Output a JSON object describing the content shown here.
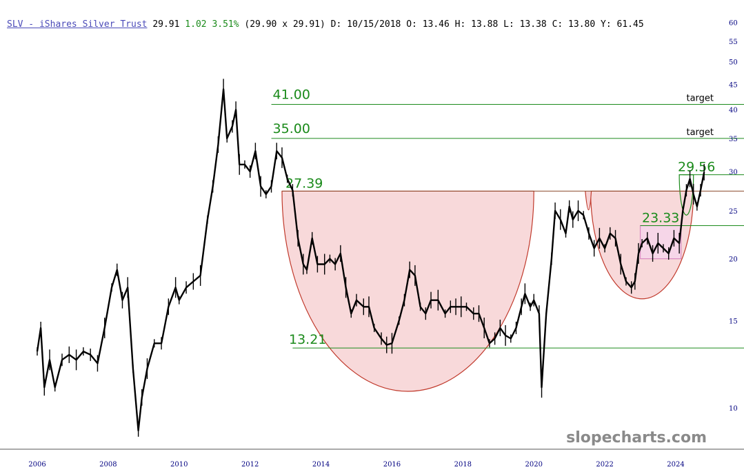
{
  "header": {
    "symbol": "SLV - iShares Silver Trust",
    "last": "29.91",
    "change": "1.02",
    "change_pct": "3.51%",
    "bid_ask": "(29.90 x 29.91)",
    "date": "D: 10/15/2018",
    "open": "O: 13.46",
    "high": "H: 13.88",
    "low": "L: 13.38",
    "close": "C: 13.80",
    "y": "Y: 61.45"
  },
  "watermark": "slopecharts.com",
  "colors": {
    "price": "#000000",
    "level_line": "#1a8a1a",
    "pattern_fill": "#f7d2d4",
    "pattern_stroke": "#c0392b",
    "axis_text": "#000080"
  },
  "chart_data": {
    "type": "line",
    "title": "SLV - iShares Silver Trust",
    "yscale": "log",
    "ylim": [
      8.5,
      60
    ],
    "xlim": [
      2006,
      2024.9
    ],
    "y_ticks": [
      "60",
      "55",
      "50",
      "45",
      "40",
      "35",
      "30",
      "25",
      "20",
      "15",
      "10"
    ],
    "x_ticks": [
      "2006",
      "2008",
      "2010",
      "2012",
      "2014",
      "2016",
      "2018",
      "2020",
      "2022",
      "2024"
    ],
    "series": [
      {
        "values": [
          [
            2006.0,
            13.0
          ],
          [
            2006.1,
            14.5
          ],
          [
            2006.2,
            11.0
          ],
          [
            2006.35,
            12.5
          ],
          [
            2006.5,
            11.0
          ],
          [
            2006.7,
            12.5
          ],
          [
            2006.9,
            12.8
          ],
          [
            2007.1,
            12.5
          ],
          [
            2007.3,
            13.0
          ],
          [
            2007.5,
            12.8
          ],
          [
            2007.7,
            12.3
          ],
          [
            2007.9,
            14.5
          ],
          [
            2008.1,
            17.5
          ],
          [
            2008.25,
            19.0
          ],
          [
            2008.4,
            16.5
          ],
          [
            2008.55,
            17.5
          ],
          [
            2008.7,
            12.0
          ],
          [
            2008.85,
            9.0
          ],
          [
            2008.95,
            10.5
          ],
          [
            2009.1,
            12.0
          ],
          [
            2009.3,
            13.5
          ],
          [
            2009.5,
            13.5
          ],
          [
            2009.7,
            16.0
          ],
          [
            2009.9,
            17.5
          ],
          [
            2010.0,
            16.5
          ],
          [
            2010.2,
            17.5
          ],
          [
            2010.4,
            18.0
          ],
          [
            2010.6,
            18.5
          ],
          [
            2010.8,
            24.0
          ],
          [
            2010.95,
            28.0
          ],
          [
            2011.1,
            34.0
          ],
          [
            2011.25,
            44.0
          ],
          [
            2011.35,
            35.0
          ],
          [
            2011.5,
            37.0
          ],
          [
            2011.6,
            40.0
          ],
          [
            2011.7,
            31.0
          ],
          [
            2011.85,
            31.0
          ],
          [
            2012.0,
            30.0
          ],
          [
            2012.15,
            33.0
          ],
          [
            2012.3,
            28.0
          ],
          [
            2012.45,
            27.0
          ],
          [
            2012.6,
            28.0
          ],
          [
            2012.75,
            33.0
          ],
          [
            2012.9,
            32.0
          ],
          [
            2013.05,
            29.0
          ],
          [
            2013.2,
            27.5
          ],
          [
            2013.35,
            22.0
          ],
          [
            2013.5,
            19.5
          ],
          [
            2013.6,
            19.0
          ],
          [
            2013.75,
            22.0
          ],
          [
            2013.9,
            19.5
          ],
          [
            2014.1,
            19.5
          ],
          [
            2014.25,
            20.0
          ],
          [
            2014.4,
            19.5
          ],
          [
            2014.55,
            20.5
          ],
          [
            2014.7,
            17.5
          ],
          [
            2014.85,
            15.5
          ],
          [
            2015.0,
            16.5
          ],
          [
            2015.2,
            16.0
          ],
          [
            2015.35,
            16.0
          ],
          [
            2015.5,
            14.5
          ],
          [
            2015.7,
            13.8
          ],
          [
            2015.85,
            13.4
          ],
          [
            2016.0,
            13.5
          ],
          [
            2016.2,
            15.0
          ],
          [
            2016.35,
            16.5
          ],
          [
            2016.5,
            19.0
          ],
          [
            2016.65,
            18.5
          ],
          [
            2016.8,
            16.0
          ],
          [
            2016.95,
            15.5
          ],
          [
            2017.1,
            16.5
          ],
          [
            2017.3,
            16.5
          ],
          [
            2017.5,
            15.5
          ],
          [
            2017.65,
            16.0
          ],
          [
            2017.8,
            16.0
          ],
          [
            2017.95,
            16.0
          ],
          [
            2018.1,
            16.0
          ],
          [
            2018.3,
            15.5
          ],
          [
            2018.45,
            15.5
          ],
          [
            2018.6,
            14.5
          ],
          [
            2018.75,
            13.5
          ],
          [
            2018.9,
            13.8
          ],
          [
            2019.05,
            14.5
          ],
          [
            2019.2,
            14.0
          ],
          [
            2019.35,
            13.8
          ],
          [
            2019.5,
            14.5
          ],
          [
            2019.65,
            16.0
          ],
          [
            2019.75,
            17.0
          ],
          [
            2019.9,
            16.0
          ],
          [
            2020.0,
            16.5
          ],
          [
            2020.15,
            15.5
          ],
          [
            2020.22,
            11.0
          ],
          [
            2020.35,
            15.5
          ],
          [
            2020.5,
            20.0
          ],
          [
            2020.6,
            25.0
          ],
          [
            2020.75,
            24.0
          ],
          [
            2020.9,
            22.5
          ],
          [
            2021.0,
            25.5
          ],
          [
            2021.1,
            24.0
          ],
          [
            2021.25,
            25.0
          ],
          [
            2021.4,
            24.5
          ],
          [
            2021.55,
            22.5
          ],
          [
            2021.7,
            21.0
          ],
          [
            2021.85,
            22.0
          ],
          [
            2022.0,
            21.0
          ],
          [
            2022.15,
            22.5
          ],
          [
            2022.3,
            22.0
          ],
          [
            2022.45,
            19.5
          ],
          [
            2022.6,
            18.0
          ],
          [
            2022.75,
            17.5
          ],
          [
            2022.85,
            18.0
          ],
          [
            2022.95,
            20.5
          ],
          [
            2023.05,
            21.5
          ],
          [
            2023.2,
            22.0
          ],
          [
            2023.35,
            20.5
          ],
          [
            2023.5,
            21.5
          ],
          [
            2023.65,
            21.0
          ],
          [
            2023.8,
            20.5
          ],
          [
            2023.95,
            22.0
          ],
          [
            2024.1,
            21.5
          ],
          [
            2024.2,
            25.0
          ],
          [
            2024.3,
            27.5
          ],
          [
            2024.4,
            29.0
          ],
          [
            2024.5,
            27.0
          ],
          [
            2024.6,
            25.5
          ],
          [
            2024.7,
            27.5
          ],
          [
            2024.8,
            29.91
          ]
        ]
      }
    ],
    "levels": [
      {
        "label": "41.00",
        "value": 41.0,
        "x_start": 2012.6,
        "note": "target"
      },
      {
        "label": "35.00",
        "value": 35.0,
        "x_start": 2012.6,
        "note": "target"
      },
      {
        "label": "29.56",
        "value": 29.56,
        "x_start": 2024.2,
        "note": ""
      },
      {
        "label": "27.39",
        "value": 27.39,
        "x_start": 2012.9,
        "note": ""
      },
      {
        "label": "23.33",
        "value": 23.33,
        "x_start": 2023.0,
        "note": ""
      },
      {
        "label": "13.21",
        "value": 13.21,
        "x_start": 2013.2,
        "note": ""
      }
    ],
    "patterns": [
      {
        "kind": "cup",
        "x_start": 2012.9,
        "x_end": 2020.0,
        "top": 27.39,
        "bottom": 10.8
      },
      {
        "kind": "handle",
        "x_start": 2021.6,
        "x_end": 2024.5,
        "top": 27.39,
        "bottom": 16.6
      },
      {
        "kind": "box",
        "x_start": 2023.0,
        "x_end": 2024.15,
        "top": 23.33,
        "bottom": 20.0
      },
      {
        "kind": "cup",
        "x_start": 2024.1,
        "x_end": 2024.5,
        "top": 29.56,
        "bottom": 24.5
      }
    ]
  }
}
